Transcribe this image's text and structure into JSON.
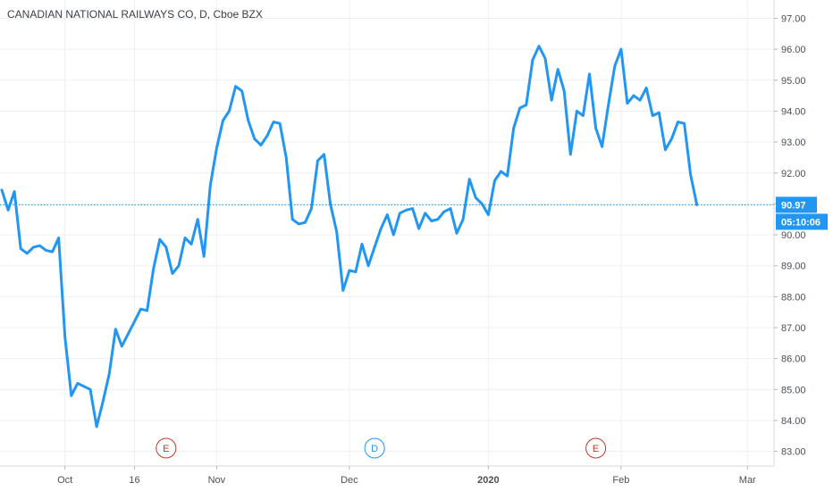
{
  "chart_data": {
    "type": "line",
    "title": "CANADIAN NATIONAL RAILWAYS CO, D, Cboe BZX",
    "ylim": [
      82.5,
      97.5
    ],
    "y_ticks": [
      "97.00",
      "96.00",
      "95.00",
      "94.00",
      "93.00",
      "92.00",
      "91.00",
      "90.00",
      "89.00",
      "88.00",
      "87.00",
      "86.00",
      "85.00",
      "84.00",
      "83.00"
    ],
    "x_ticks": [
      {
        "label": "Oct",
        "index": 10
      },
      {
        "label": "16",
        "index": 21
      },
      {
        "label": "Nov",
        "index": 34
      },
      {
        "label": "Dec",
        "index": 55
      },
      {
        "label": "2020",
        "index": 77
      },
      {
        "label": "Feb",
        "index": 98
      },
      {
        "label": "Mar",
        "index": 118
      }
    ],
    "series": [
      {
        "values": [
          91.45,
          90.8,
          91.4,
          89.55,
          89.4,
          89.6,
          89.65,
          89.5,
          89.45,
          89.9,
          86.7,
          84.8,
          85.2,
          85.1,
          85.0,
          83.8,
          84.6,
          85.5,
          86.95,
          86.4,
          86.8,
          87.2,
          87.6,
          87.55,
          88.9,
          89.85,
          89.6,
          88.75,
          89.0,
          89.9,
          89.7,
          90.5,
          89.3,
          91.6,
          92.8,
          93.7,
          94.0,
          94.8,
          94.65,
          93.7,
          93.1,
          92.9,
          93.2,
          93.65,
          93.6,
          92.5,
          90.5,
          90.35,
          90.4,
          90.85,
          92.4,
          92.6,
          91.0,
          90.1,
          88.2,
          88.85,
          88.8,
          89.7,
          89.0,
          89.6,
          90.2,
          90.65,
          90.0,
          90.7,
          90.8,
          90.85,
          90.2,
          90.7,
          90.45,
          90.5,
          90.75,
          90.85,
          90.05,
          90.5,
          91.8,
          91.2,
          91.0,
          90.65,
          91.75,
          92.05,
          91.9,
          93.45,
          94.1,
          94.2,
          95.65,
          96.1,
          95.7,
          94.35,
          95.35,
          94.65,
          92.6,
          94.0,
          93.85,
          95.2,
          93.45,
          92.85,
          94.2,
          95.45,
          96.0,
          94.25,
          94.5,
          94.35,
          94.75,
          93.85,
          93.95,
          92.75,
          93.1,
          93.65,
          93.6,
          91.95,
          90.97
        ]
      }
    ],
    "last_price": "90.97",
    "countdown": "05:10:06",
    "events": [
      {
        "label": "E",
        "index": 26,
        "color": "#c0392b"
      },
      {
        "label": "D",
        "index": 59,
        "color": "#2196f3"
      },
      {
        "label": "E",
        "index": 94,
        "color": "#c0392b"
      }
    ],
    "line_color": "#2196f3",
    "grid": true
  }
}
